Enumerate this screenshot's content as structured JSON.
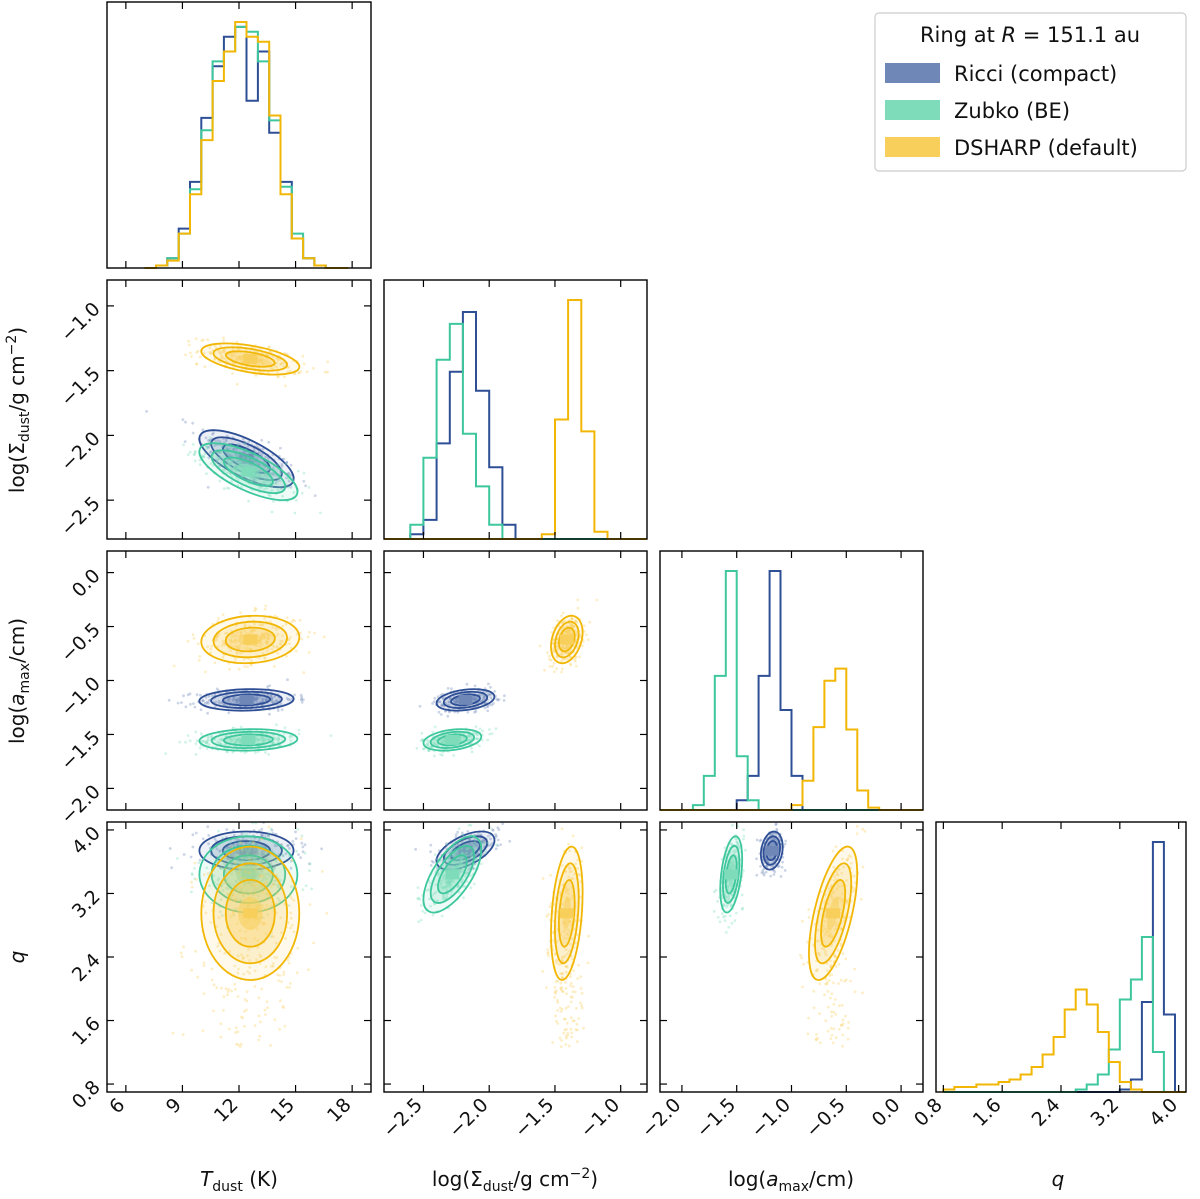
{
  "chart_data": {
    "type": "corner",
    "title": "Ring at R = 151.1 au",
    "parameters": [
      {
        "key": "T",
        "label": "T_dust (K)",
        "range": [
          5,
          19
        ],
        "ticks": [
          6,
          9,
          12,
          15,
          18
        ],
        "tick_labels": [
          "6",
          "9",
          "12",
          "15",
          "18"
        ]
      },
      {
        "key": "S",
        "label": "log(Σ_dust/g cm^-2)",
        "range": [
          -2.8,
          -0.8
        ],
        "ticks": [
          -2.5,
          -2.0,
          -1.5,
          -1.0
        ],
        "tick_labels": [
          "−2.5",
          "−2.0",
          "−1.5",
          "−1.0"
        ]
      },
      {
        "key": "A",
        "label": "log(a_max/cm)",
        "range": [
          -2.2,
          0.2
        ],
        "ticks": [
          -2.0,
          -1.5,
          -1.0,
          -0.5,
          0.0
        ],
        "tick_labels": [
          "−2.0",
          "−1.5",
          "−1.0",
          "−0.5",
          "0.0"
        ]
      },
      {
        "key": "Q",
        "label": "q",
        "range": [
          0.7,
          4.1
        ],
        "ticks": [
          0.8,
          1.6,
          2.4,
          3.2,
          4.0
        ],
        "tick_labels": [
          "0.8",
          "1.6",
          "2.4",
          "3.2",
          "4.0"
        ]
      }
    ],
    "axis_labels": {
      "T_main": "T",
      "T_sub": "dust",
      "T_unit": " (K)",
      "S_pre": "log(Σ",
      "S_sub": "dust",
      "S_post": "/g cm",
      "S_sup": "−2",
      "S_end": ")",
      "A_pre": "log(",
      "A_var": "a",
      "A_sub": "max",
      "A_post": "/cm)",
      "Q": "q"
    },
    "legend": {
      "title_pre": "Ring at ",
      "title_var": "R",
      "title_post": " = 151.1 au",
      "placement": "top-right"
    },
    "series": [
      {
        "name": "Ricci (compact)",
        "color": "#2e4f96",
        "fill": "#6e87b6",
        "mean": {
          "T": 12.4,
          "S": -2.18,
          "A": -1.18,
          "Q": 3.74
        },
        "sd": {
          "T": 1.25,
          "S": 0.11,
          "A": 0.05,
          "Q": 0.12
        },
        "corr": {
          "T_S": -0.7,
          "T_A": 0.1,
          "T_Q": 0.0,
          "S_A": 0.3,
          "S_Q": 0.55,
          "A_Q": 0.2
        },
        "hist": {
          "T": {
            "edges": [
              7.0,
              7.6,
              8.2,
              8.8,
              9.4,
              10.0,
              10.6,
              11.2,
              11.8,
              12.4,
              13.0,
              13.6,
              14.2,
              14.8,
              15.4,
              16.0,
              16.6,
              17.2,
              17.8
            ],
            "values": [
              0,
              1,
              4,
              16,
              35,
              61,
              82,
              94,
              98,
              68,
              88,
              55,
              35,
              12,
              4,
              1,
              0,
              0
            ]
          },
          "S": {
            "edges": [
              -2.8,
              -2.7,
              -2.6,
              -2.5,
              -2.4,
              -2.3,
              -2.2,
              -2.1,
              -2.0,
              -1.9,
              -1.8,
              -1.7,
              -1.6,
              -1.5,
              -1.4,
              -1.3,
              -1.2,
              -1.1,
              -1.0,
              -0.9,
              -0.8
            ],
            "values": [
              0,
              0,
              2,
              8,
              40,
              70,
              95,
              62,
              30,
              6,
              0,
              0,
              0,
              0,
              0,
              0,
              0,
              0,
              0,
              0
            ]
          },
          "A": {
            "edges": [
              -2.2,
              -2.1,
              -2.0,
              -1.9,
              -1.8,
              -1.7,
              -1.6,
              -1.5,
              -1.4,
              -1.3,
              -1.2,
              -1.1,
              -1.0,
              -0.9,
              -0.8,
              -0.7,
              -0.6,
              -0.5,
              -0.4,
              -0.3,
              -0.2,
              -0.1,
              0.0,
              0.1,
              0.2
            ],
            "values": [
              0,
              0,
              0,
              0,
              0,
              0,
              0,
              4,
              14,
              55,
              98,
              41,
              14,
              0,
              0,
              0,
              0,
              0,
              0,
              0,
              0,
              0,
              0,
              0
            ]
          },
          "Q": {
            "edges": [
              0.8,
              0.95,
              1.1,
              1.25,
              1.4,
              1.55,
              1.7,
              1.85,
              2.0,
              2.15,
              2.3,
              2.45,
              2.6,
              2.75,
              2.9,
              3.05,
              3.2,
              3.35,
              3.5,
              3.65,
              3.8,
              3.95,
              4.1
            ],
            "values": [
              0,
              0,
              0,
              0,
              0,
              0,
              0,
              0,
              0,
              0,
              0,
              0,
              0,
              0,
              0,
              0,
              1,
              5,
              36,
              100,
              31,
              0
            ]
          }
        }
      },
      {
        "name": "Zubko (BE)",
        "color": "#3ec79d",
        "fill": "#7fdcbb",
        "mean": {
          "T": 12.5,
          "S": -2.28,
          "A": -1.55,
          "Q": 3.44
        },
        "sd": {
          "T": 1.3,
          "S": 0.11,
          "A": 0.05,
          "Q": 0.24
        },
        "corr": {
          "T_S": -0.7,
          "T_A": 0.1,
          "T_Q": 0.0,
          "S_A": 0.3,
          "S_Q": 0.65,
          "A_Q": 0.4
        },
        "hist": {
          "T": {
            "edges": [
              7.0,
              7.6,
              8.2,
              8.8,
              9.4,
              10.0,
              10.6,
              11.2,
              11.8,
              12.4,
              13.0,
              13.6,
              14.2,
              14.8,
              15.4,
              16.0,
              16.6,
              17.2,
              17.8
            ],
            "values": [
              0,
              1,
              4,
              14,
              32,
              56,
              84,
              88,
              98,
              96,
              84,
              60,
              33,
              14,
              4,
              1,
              0,
              0
            ]
          },
          "S": {
            "edges": [
              -2.8,
              -2.7,
              -2.6,
              -2.5,
              -2.4,
              -2.3,
              -2.2,
              -2.1,
              -2.0,
              -1.9,
              -1.8,
              -1.7,
              -1.6,
              -1.5,
              -1.4,
              -1.3,
              -1.2,
              -1.1,
              -1.0,
              -0.9,
              -0.8
            ],
            "values": [
              0,
              0,
              6,
              34,
              75,
              90,
              44,
              22,
              6,
              0,
              0,
              0,
              0,
              0,
              0,
              0,
              0,
              0,
              0,
              0
            ]
          },
          "A": {
            "edges": [
              -2.2,
              -2.1,
              -2.0,
              -1.9,
              -1.8,
              -1.7,
              -1.6,
              -1.5,
              -1.4,
              -1.3,
              -1.2,
              -1.1,
              -1.0,
              -0.9,
              -0.8,
              -0.7,
              -0.6,
              -0.5,
              -0.4,
              -0.3,
              -0.2,
              -0.1,
              0.0,
              0.1,
              0.2
            ],
            "values": [
              0,
              0,
              0,
              2,
              14,
              55,
              98,
              22,
              4,
              0,
              0,
              0,
              0,
              0,
              0,
              0,
              0,
              0,
              0,
              0,
              0,
              0,
              0,
              0
            ]
          },
          "Q": {
            "edges": [
              0.8,
              0.95,
              1.1,
              1.25,
              1.4,
              1.55,
              1.7,
              1.85,
              2.0,
              2.15,
              2.3,
              2.45,
              2.6,
              2.75,
              2.9,
              3.05,
              3.2,
              3.35,
              3.5,
              3.65,
              3.8,
              3.95,
              4.1
            ],
            "values": [
              0,
              0,
              0,
              0,
              0,
              0,
              0,
              0,
              0,
              0,
              0,
              0,
              1,
              3,
              7,
              17,
              37,
              45,
              62,
              16,
              0,
              0
            ]
          }
        }
      },
      {
        "name": "DSHARP (default)",
        "color": "#f2b705",
        "fill": "#f8cf5b",
        "mean": {
          "T": 12.6,
          "S": -1.41,
          "A": -0.62,
          "Q": 2.95
        },
        "sd": {
          "T": 1.3,
          "S": 0.06,
          "A": 0.11,
          "Q": 0.42
        },
        "corr": {
          "T_S": -0.5,
          "T_A": 0.1,
          "T_Q": 0.0,
          "S_A": 0.3,
          "S_Q": 0.3,
          "A_Q": 0.6
        },
        "hist": {
          "T": {
            "edges": [
              7.0,
              7.6,
              8.2,
              8.8,
              9.4,
              10.0,
              10.6,
              11.2,
              11.8,
              12.4,
              13.0,
              13.6,
              14.2,
              14.8,
              15.4,
              16.0,
              16.6,
              17.2,
              17.8
            ],
            "values": [
              0,
              1,
              3,
              14,
              30,
              52,
              76,
              88,
              100,
              94,
              92,
              62,
              30,
              12,
              4,
              1,
              0,
              0
            ]
          },
          "S": {
            "edges": [
              -2.8,
              -2.7,
              -2.6,
              -2.5,
              -2.4,
              -2.3,
              -2.2,
              -2.1,
              -2.0,
              -1.9,
              -1.8,
              -1.7,
              -1.6,
              -1.5,
              -1.4,
              -1.3,
              -1.2,
              -1.1,
              -1.0,
              -0.9,
              -0.8
            ],
            "values": [
              0,
              0,
              0,
              0,
              0,
              0,
              0,
              0,
              0,
              0,
              0,
              0,
              2,
              50,
              100,
              45,
              3,
              0,
              0,
              0
            ]
          },
          "A": {
            "edges": [
              -2.2,
              -2.1,
              -2.0,
              -1.9,
              -1.8,
              -1.7,
              -1.6,
              -1.5,
              -1.4,
              -1.3,
              -1.2,
              -1.1,
              -1.0,
              -0.9,
              -0.8,
              -0.7,
              -0.6,
              -0.5,
              -0.4,
              -0.3,
              -0.2,
              -0.1,
              0.0,
              0.1,
              0.2
            ],
            "values": [
              0,
              0,
              0,
              0,
              0,
              0,
              0,
              0,
              0,
              0,
              0,
              0,
              2,
              12,
              34,
              53,
              58,
              33,
              8,
              1,
              0,
              0,
              0,
              0
            ]
          },
          "Q": {
            "edges": [
              0.8,
              0.95,
              1.1,
              1.25,
              1.4,
              1.55,
              1.7,
              1.85,
              2.0,
              2.15,
              2.3,
              2.45,
              2.6,
              2.75,
              2.9,
              3.05,
              3.2,
              3.35,
              3.5,
              3.65,
              3.8,
              3.95,
              4.1
            ],
            "values": [
              1,
              2,
              2,
              3,
              3,
              4,
              5,
              7,
              10,
              15,
              22,
              33,
              41,
              35,
              24,
              12,
              4,
              1,
              0,
              0,
              0,
              0
            ]
          }
        }
      }
    ]
  }
}
